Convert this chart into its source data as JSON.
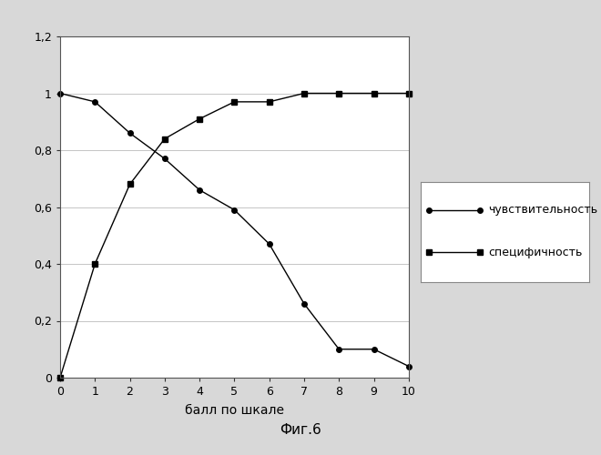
{
  "x": [
    0,
    1,
    2,
    3,
    4,
    5,
    6,
    7,
    8,
    9,
    10
  ],
  "sensitivity": [
    1.0,
    0.97,
    0.86,
    0.77,
    0.66,
    0.59,
    0.47,
    0.26,
    0.1,
    0.1,
    0.04
  ],
  "specificity": [
    0.0,
    0.4,
    0.68,
    0.84,
    0.91,
    0.97,
    0.97,
    1.0,
    1.0,
    1.0,
    1.0
  ],
  "xlabel": "балл по шкале",
  "legend_sensitivity": "чувствительность",
  "legend_specificity": "специфичность",
  "caption": "Фиг.6",
  "ylim": [
    0,
    1.2
  ],
  "xlim": [
    0,
    10
  ],
  "yticks": [
    0,
    0.2,
    0.4,
    0.6,
    0.8,
    1.0,
    1.2
  ],
  "xticks": [
    0,
    1,
    2,
    3,
    4,
    5,
    6,
    7,
    8,
    9,
    10
  ],
  "line_color": "#000000",
  "marker_circle": "o",
  "marker_square": "s",
  "background_color": "#d8d8d8",
  "plot_bg": "#ffffff"
}
